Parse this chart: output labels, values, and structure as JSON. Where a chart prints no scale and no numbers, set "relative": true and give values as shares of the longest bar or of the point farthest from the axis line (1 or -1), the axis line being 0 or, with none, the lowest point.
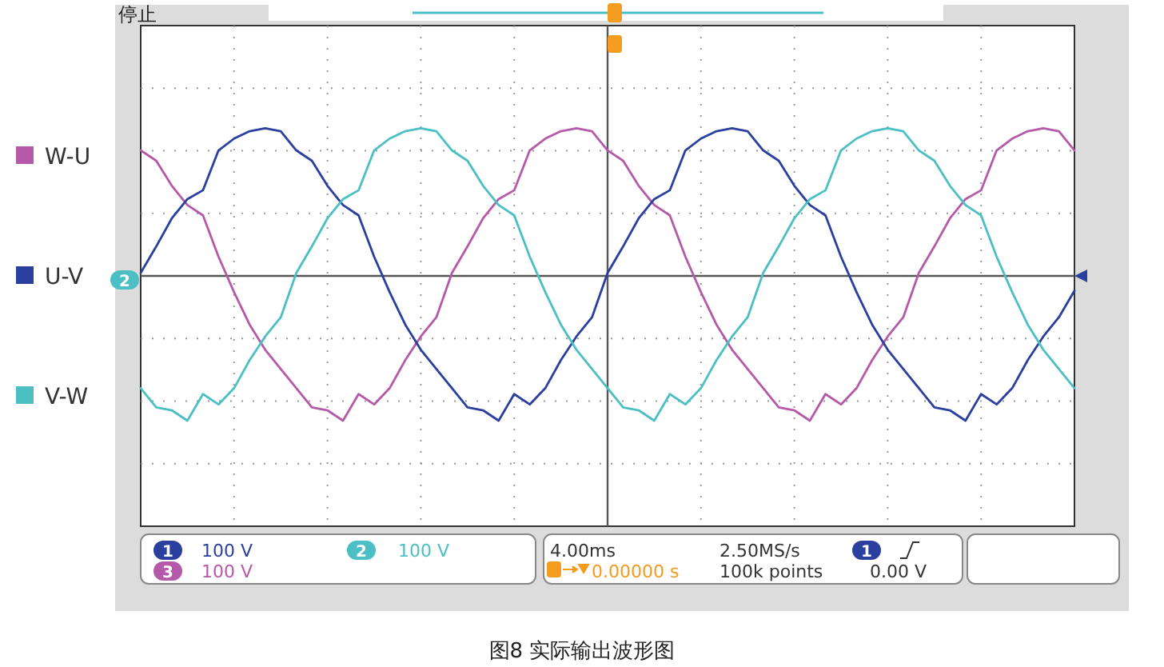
{
  "chart_data": {
    "type": "line",
    "relative": true,
    "title": "图8 实际输出波形图",
    "legend": "left",
    "grid": true,
    "categories": [
      null,
      null,
      null,
      null,
      null,
      null,
      null,
      null,
      null,
      null,
      null,
      null,
      null,
      null,
      null,
      null,
      null,
      null,
      null,
      null,
      null,
      null,
      null,
      null,
      null,
      null,
      null,
      null,
      null,
      null,
      null,
      null,
      null,
      null,
      null,
      null,
      null,
      null,
      null,
      null,
      null,
      null,
      null,
      null,
      null,
      null,
      null,
      null,
      null,
      null,
      null,
      null,
      null,
      null,
      null,
      null,
      null,
      null,
      null,
      null,
      null
    ],
    "series": [
      {
        "name": "W-U",
        "color": "#b55aa8",
        "values": [
          0.85,
          0.78,
          0.61,
          0.48,
          0.41,
          0.13,
          -0.11,
          -0.33,
          -0.5,
          -0.63,
          -0.76,
          -0.89,
          -0.91,
          -0.98,
          -0.8,
          -0.87,
          -0.76,
          -0.57,
          -0.41,
          -0.28,
          0.02,
          0.2,
          0.39,
          0.52,
          0.58,
          0.85,
          0.93,
          0.98,
          1,
          0.98,
          0.85,
          0.78,
          0.61,
          0.48,
          0.41,
          0.13,
          -0.11,
          -0.33,
          -0.5,
          -0.63,
          -0.76,
          -0.89,
          -0.91,
          -0.98,
          -0.8,
          -0.87,
          -0.76,
          -0.57,
          -0.41,
          -0.28,
          0.02,
          0.2,
          0.39,
          0.52,
          0.58,
          0.85,
          0.93,
          0.98,
          1,
          0.98,
          0.85
        ]
      },
      {
        "name": "U-V",
        "color": "#2b3f9e",
        "values": [
          0.02,
          0.2,
          0.39,
          0.52,
          0.58,
          0.85,
          0.93,
          0.98,
          1,
          0.98,
          0.85,
          0.78,
          0.61,
          0.48,
          0.41,
          0.13,
          -0.11,
          -0.33,
          -0.5,
          -0.63,
          -0.76,
          -0.89,
          -0.91,
          -0.98,
          -0.8,
          -0.87,
          -0.76,
          -0.57,
          -0.41,
          -0.28,
          0.02,
          0.2,
          0.39,
          0.52,
          0.58,
          0.85,
          0.93,
          0.98,
          1,
          0.98,
          0.85,
          0.78,
          0.61,
          0.48,
          0.41,
          0.13,
          -0.11,
          -0.33,
          -0.5,
          -0.63,
          -0.76,
          -0.89,
          -0.91,
          -0.98,
          -0.8,
          -0.87,
          -0.76,
          -0.57,
          -0.41,
          -0.28,
          -0.1
        ]
      },
      {
        "name": "V-W",
        "color": "#4bbfc4",
        "values": [
          -0.76,
          -0.89,
          -0.91,
          -0.98,
          -0.8,
          -0.87,
          -0.76,
          -0.57,
          -0.41,
          -0.28,
          0.02,
          0.2,
          0.39,
          0.52,
          0.58,
          0.85,
          0.93,
          0.98,
          1,
          0.98,
          0.85,
          0.78,
          0.61,
          0.48,
          0.41,
          0.13,
          -0.11,
          -0.33,
          -0.5,
          -0.63,
          -0.76,
          -0.89,
          -0.91,
          -0.98,
          -0.8,
          -0.87,
          -0.76,
          -0.57,
          -0.41,
          -0.28,
          0.02,
          0.2,
          0.39,
          0.52,
          0.58,
          0.85,
          0.93,
          0.98,
          1,
          0.98,
          0.85,
          0.78,
          0.61,
          0.48,
          0.41,
          0.13,
          -0.11,
          -0.33,
          -0.5,
          -0.63,
          -0.76
        ]
      }
    ],
    "annotations": [
      "停止",
      "1",
      "100 V",
      "2",
      "100 V",
      "3",
      "100 V",
      "4.00ms",
      "2.50MS/s",
      "0.00000 s",
      "100k points",
      "1",
      "0.00 V",
      "2"
    ]
  }
}
